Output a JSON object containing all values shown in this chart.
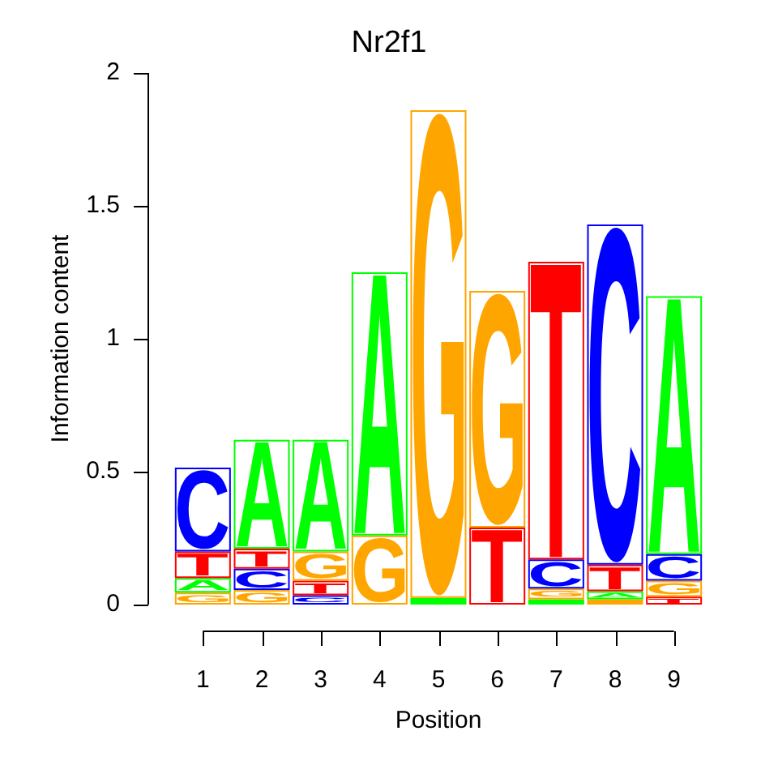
{
  "chart_data": {
    "type": "bar",
    "title": "Nr2f1",
    "xlabel": "Position",
    "ylabel": "Information content",
    "categories": [
      "1",
      "2",
      "3",
      "4",
      "5",
      "6",
      "7",
      "8",
      "9"
    ],
    "stacked": true,
    "series": [
      {
        "values": [
          0.045,
          0.055,
          0.035,
          0.26,
          0.025,
          0.29,
          0.02,
          0.02,
          0.03
        ],
        "colors": [
          "#ffa500",
          "#ffa500",
          "#0000ff",
          "#ffa500",
          "#00ff00",
          "#ff0000",
          "#00ff00",
          "#ffa500",
          "#ff0000"
        ],
        "value_labels": [
          "G",
          "G",
          "C",
          "G",
          null,
          "T",
          null,
          null,
          "T"
        ]
      },
      {
        "values": [
          0.055,
          0.08,
          0.055,
          0.99,
          1.835,
          0.89,
          0.04,
          0.03,
          0.06
        ],
        "colors": [
          "#00ff00",
          "#0000ff",
          "#ff0000",
          "#00ff00",
          "#ffa500",
          "#ffa500",
          "#ffa500",
          "#00ff00",
          "#ffa500"
        ],
        "value_labels": [
          "A",
          "C",
          "T",
          "A",
          "G",
          "G",
          "G",
          "A",
          "G"
        ]
      },
      {
        "values": [
          0.1,
          0.075,
          0.11,
          null,
          null,
          null,
          0.11,
          0.1,
          0.1
        ],
        "colors": [
          "#ff0000",
          "#ff0000",
          "#ffa500",
          null,
          null,
          null,
          "#0000ff",
          "#ff0000",
          "#0000ff"
        ],
        "value_labels": [
          "T",
          "T",
          "G",
          null,
          null,
          null,
          "C",
          "T",
          "C"
        ]
      },
      {
        "values": [
          0.315,
          0.41,
          0.42,
          null,
          null,
          null,
          1.12,
          1.28,
          0.97
        ],
        "colors": [
          "#0000ff",
          "#00ff00",
          "#00ff00",
          null,
          null,
          null,
          "#ff0000",
          "#0000ff",
          "#00ff00"
        ],
        "value_labels": [
          "C",
          "A",
          "A",
          null,
          null,
          null,
          "T",
          "C",
          "A"
        ]
      }
    ],
    "ylim": [
      0,
      2
    ],
    "yticks": [
      0,
      0.5,
      1,
      1.5,
      2
    ]
  }
}
